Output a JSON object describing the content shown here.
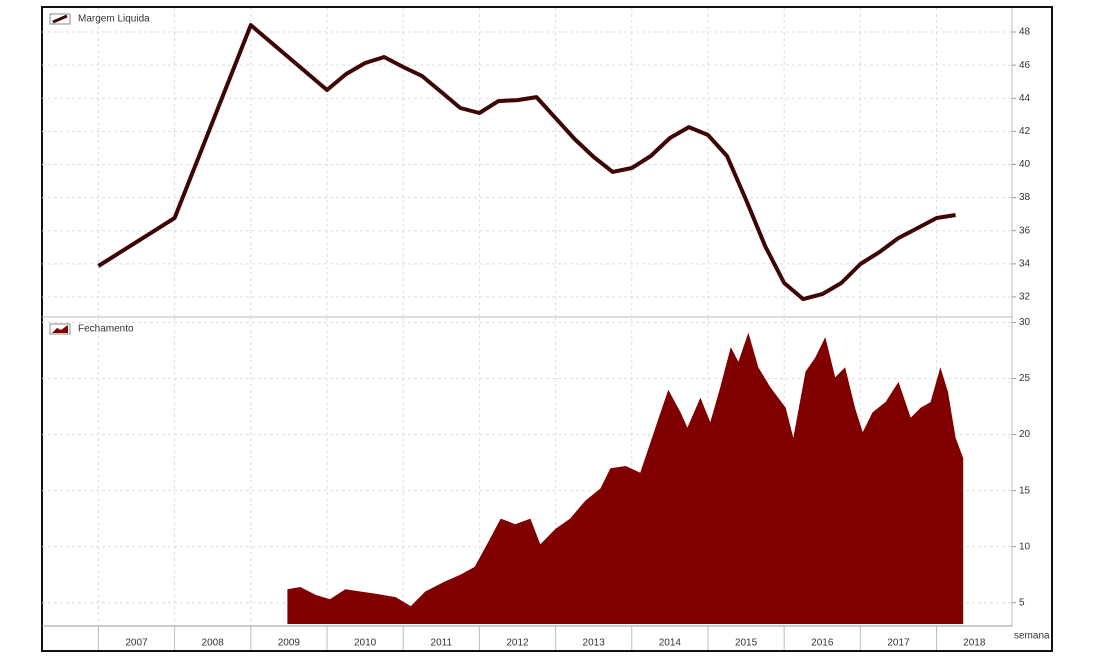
{
  "chart_data": [
    {
      "type": "line",
      "x": [
        2007.0,
        2008.0,
        2009.0,
        2010.0,
        2010.25,
        2010.5,
        2010.75,
        2011.0,
        2011.25,
        2011.5,
        2011.75,
        2012.0,
        2012.25,
        2012.5,
        2012.75,
        2013.0,
        2013.25,
        2013.5,
        2013.75,
        2014.0,
        2014.25,
        2014.5,
        2014.75,
        2015.0,
        2015.25,
        2015.5,
        2015.75,
        2016.0,
        2016.25,
        2016.5,
        2016.75,
        2017.0,
        2017.25,
        2017.5,
        2017.75,
        2018.0,
        2018.25
      ],
      "series": [
        {
          "name": "Margem Liquida",
          "color": "#3d0505",
          "values": [
            33.87,
            36.77,
            48.42,
            44.5,
            45.46,
            46.13,
            46.49,
            45.89,
            45.34,
            44.38,
            43.41,
            43.11,
            43.83,
            43.89,
            44.07,
            42.8,
            41.54,
            40.45,
            39.55,
            39.79,
            40.51,
            41.6,
            42.26,
            41.78,
            40.51,
            37.86,
            35.08,
            32.84,
            31.87,
            32.17,
            32.84,
            33.99,
            34.71,
            35.56,
            36.16,
            36.77,
            36.95
          ]
        }
      ],
      "xlim": [
        2006.26,
        2018.99
      ],
      "xticks": [
        2007,
        2008,
        2009,
        2010,
        2011,
        2012,
        2013,
        2014,
        2015,
        2016,
        2017,
        2018
      ],
      "ylim": [
        30.85,
        49.45
      ],
      "yticks": [
        32,
        34,
        36,
        38,
        40,
        42,
        44,
        46,
        48
      ],
      "grid": true
    },
    {
      "type": "area",
      "x": [
        2009.48,
        2009.65,
        2009.85,
        2010.04,
        2010.24,
        2010.44,
        2010.64,
        2010.9,
        2011.1,
        2011.29,
        2011.55,
        2011.75,
        2011.94,
        2012.14,
        2012.28,
        2012.47,
        2012.67,
        2012.8,
        2013.0,
        2013.19,
        2013.39,
        2013.59,
        2013.72,
        2013.92,
        2014.11,
        2014.31,
        2014.48,
        2014.64,
        2014.73,
        2014.9,
        2015.03,
        2015.16,
        2015.3,
        2015.4,
        2015.53,
        2015.66,
        2015.82,
        2016.02,
        2016.12,
        2016.28,
        2016.41,
        2016.54,
        2016.67,
        2016.8,
        2016.93,
        2017.03,
        2017.16,
        2017.33,
        2017.5,
        2017.66,
        2017.79,
        2017.92,
        2018.05,
        2018.15,
        2018.25,
        2018.35
      ],
      "series": [
        {
          "name": "Fechamento",
          "color": "#800000",
          "values": [
            6.2,
            6.4,
            5.7,
            5.3,
            6.2,
            6.0,
            5.8,
            5.5,
            4.7,
            6.0,
            6.9,
            7.5,
            8.2,
            10.7,
            12.5,
            12.0,
            12.5,
            10.2,
            11.6,
            12.5,
            14.1,
            15.2,
            17.0,
            17.2,
            16.6,
            20.6,
            24.0,
            22.0,
            20.6,
            23.3,
            21.1,
            24.2,
            27.8,
            26.5,
            29.1,
            26.0,
            24.2,
            22.4,
            19.7,
            25.6,
            26.9,
            28.7,
            25.1,
            26.0,
            22.4,
            20.2,
            22.0,
            22.9,
            24.7,
            21.5,
            22.4,
            22.9,
            26.0,
            23.8,
            19.7,
            17.9
          ]
        }
      ],
      "xlim": [
        2006.26,
        2018.99
      ],
      "xticks": [
        2007,
        2008,
        2009,
        2010,
        2011,
        2012,
        2013,
        2014,
        2015,
        2016,
        2017,
        2018
      ],
      "xlabel": "semana",
      "ylim": [
        3.1,
        30.4
      ],
      "yticks": [
        5,
        10,
        15,
        20,
        25,
        30
      ],
      "grid": true
    }
  ]
}
